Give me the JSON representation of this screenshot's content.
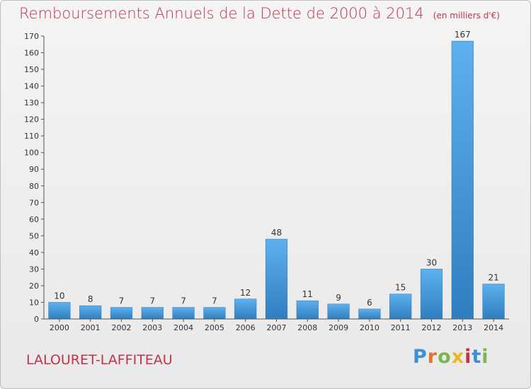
{
  "chart_data": {
    "type": "bar",
    "title": "Remboursements Annuels de la Dette de 2000 à 2014",
    "subtitle": "(en milliers d'€)",
    "categories": [
      "2000",
      "2001",
      "2002",
      "2003",
      "2004",
      "2005",
      "2006",
      "2007",
      "2008",
      "2009",
      "2010",
      "2011",
      "2012",
      "2013",
      "2014"
    ],
    "values": [
      10,
      8,
      7,
      7,
      7,
      7,
      12,
      48,
      11,
      9,
      6,
      15,
      30,
      167,
      21
    ],
    "xlabel": "",
    "ylabel": "",
    "ylim": [
      0,
      170
    ],
    "yticks": [
      0,
      10,
      20,
      30,
      40,
      50,
      60,
      70,
      80,
      90,
      100,
      110,
      120,
      130,
      140,
      150,
      160,
      170
    ],
    "grid": false,
    "bar_color": "#3b95d9"
  },
  "commune": "LALOURET-LAFFITEAU",
  "logo": {
    "letters": [
      "P",
      "r",
      "o",
      "x",
      "i",
      "t",
      "i"
    ],
    "colors": [
      "#3d8fd6",
      "#e8702a",
      "#7ab648",
      "#e8b820",
      "#c0334a",
      "#3d8fd6",
      "#7ab648"
    ]
  }
}
